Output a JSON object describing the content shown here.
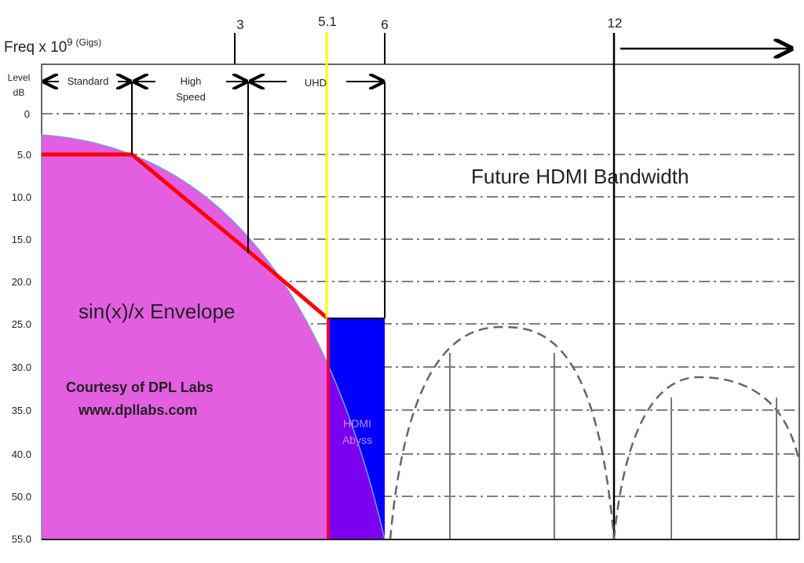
{
  "chart_data": {
    "type": "diagram",
    "x_axis": {
      "label": "Freq x 10",
      "label_superscript": "9",
      "label_unit": "(Gigs)",
      "ticks": [
        "3",
        "5.1",
        "6",
        "12"
      ],
      "arrow_direction": "right"
    },
    "y_axis": {
      "label_line1": "Level",
      "label_line2": "dB",
      "ticks": [
        "0",
        "5.0",
        "10.0",
        "15.0",
        "20.0",
        "25.0",
        "30.0",
        "35.0",
        "40.0",
        "50.0",
        "55.0"
      ]
    },
    "ranges": [
      {
        "label": "Standard"
      },
      {
        "label_line1": "High",
        "label_line2": "Speed"
      },
      {
        "label": "UHD"
      }
    ],
    "annotations": {
      "future": "Future HDMI Bandwidth",
      "envelope": "sin(x)/x Envelope",
      "courtesy": "Courtesy of DPL Labs",
      "website": "www.dpllabs.com",
      "abyss_line1": "HDMI",
      "abyss_line2": "Abyss"
    },
    "grid": true,
    "colors": {
      "envelope_fill": "#e35ee0",
      "abyss_fill": "#7b00f0",
      "blue_block": "#0000ff",
      "red_line": "#ff0000",
      "marker_5_1": "#ffff00"
    }
  }
}
